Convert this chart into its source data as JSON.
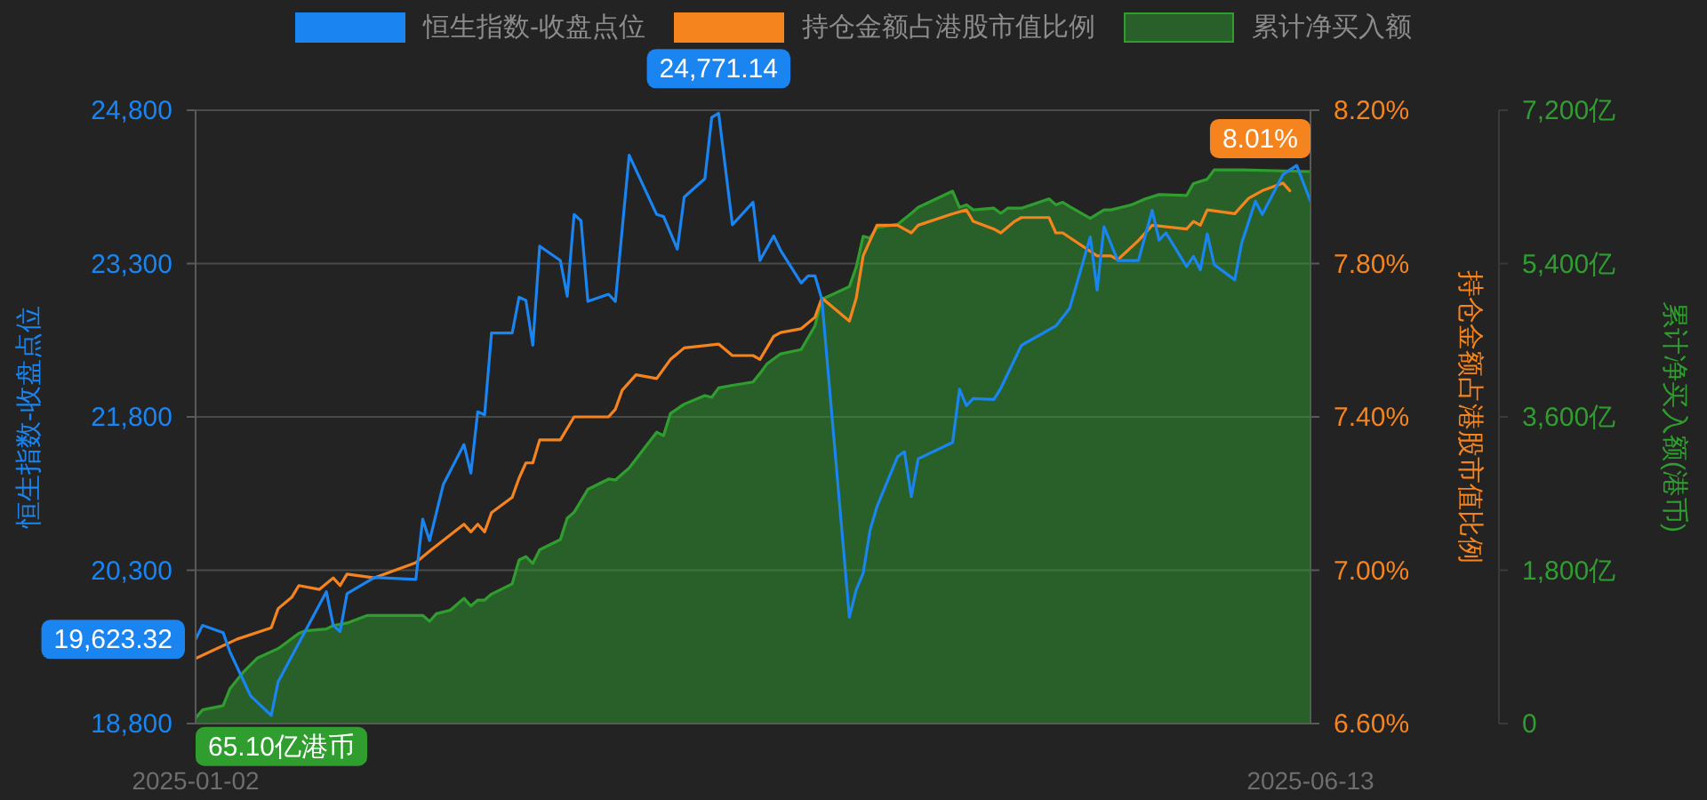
{
  "chart_data": {
    "type": "line",
    "legend": "top",
    "grid": "y",
    "ylabel": "恒生指数-收盘点位",
    "y2label": "持仓金额占港股市值比例",
    "y3label": "累计净买入额(港币)",
    "xlim": [
      "2025-01-02",
      "2025-06-13"
    ],
    "xticks": [
      "2025-01-02",
      "2025-06-13"
    ],
    "ylim": [
      18800,
      24800
    ],
    "yticks": [
      {
        "value": 18800,
        "label": "18,800"
      },
      {
        "value": 20300,
        "label": "20,300"
      },
      {
        "value": 21800,
        "label": "21,800"
      },
      {
        "value": 23300,
        "label": "23,300"
      },
      {
        "value": 24800,
        "label": "24,800"
      }
    ],
    "y2lim": [
      6.6,
      8.2
    ],
    "y2ticks": [
      {
        "value": 6.6,
        "label": "6.60%"
      },
      {
        "value": 7.0,
        "label": "7.00%"
      },
      {
        "value": 7.4,
        "label": "7.40%"
      },
      {
        "value": 7.8,
        "label": "7.80%"
      },
      {
        "value": 8.2,
        "label": "8.20%"
      }
    ],
    "y3lim": [
      0,
      7200
    ],
    "y3ticks": [
      0,
      {
        "value": 1800,
        "label": "1,800亿"
      },
      {
        "value": 3600,
        "label": "3,600亿"
      },
      {
        "value": 5400,
        "label": "5,400亿"
      },
      {
        "value": 7200,
        "label": "7,200亿"
      }
    ],
    "series": [
      {
        "name": "恒生指数-收盘点位",
        "color": "#1a84f0",
        "x": [
          "2025-01-02",
          "2025-01-03",
          "2025-01-06",
          "2025-01-07",
          "2025-01-10",
          "2025-01-13",
          "2025-01-14",
          "2025-01-21",
          "2025-01-22",
          "2025-01-23",
          "2025-01-24",
          "2025-01-28",
          "2025-02-03",
          "2025-02-04",
          "2025-02-05",
          "2025-02-07",
          "2025-02-10",
          "2025-02-11",
          "2025-02-12",
          "2025-02-13",
          "2025-02-14",
          "2025-02-17",
          "2025-02-18",
          "2025-02-19",
          "2025-02-20",
          "2025-02-21",
          "2025-02-24",
          "2025-02-25",
          "2025-02-26",
          "2025-02-27",
          "2025-02-28",
          "2025-03-03",
          "2025-03-04",
          "2025-03-06",
          "2025-03-10",
          "2025-03-11",
          "2025-03-13",
          "2025-03-14",
          "2025-03-17",
          "2025-03-18",
          "2025-03-19",
          "2025-03-21",
          "2025-03-24",
          "2025-03-25",
          "2025-03-27",
          "2025-03-28",
          "2025-03-31",
          "2025-04-01",
          "2025-04-02",
          "2025-04-03",
          "2025-04-07",
          "2025-04-08",
          "2025-04-09",
          "2025-04-10",
          "2025-04-11",
          "2025-04-14",
          "2025-04-15",
          "2025-04-16",
          "2025-04-17",
          "2025-04-22",
          "2025-04-23",
          "2025-04-24",
          "2025-04-25",
          "2025-04-28",
          "2025-04-29",
          "2025-05-02",
          "2025-05-07",
          "2025-05-09",
          "2025-05-12",
          "2025-05-13",
          "2025-05-14",
          "2025-05-16",
          "2025-05-19",
          "2025-05-21",
          "2025-05-22",
          "2025-05-23",
          "2025-05-26",
          "2025-05-27",
          "2025-05-28",
          "2025-05-29",
          "2025-05-30",
          "2025-06-02",
          "2025-06-03",
          "2025-06-05",
          "2025-06-06",
          "2025-06-09",
          "2025-06-11",
          "2025-06-13"
        ],
        "values": [
          19623.32,
          19760,
          19690,
          19500,
          19070,
          18880,
          19210,
          20090,
          19760,
          19700,
          20070,
          20230,
          20210,
          20800,
          20590,
          21140,
          21530,
          21250,
          21850,
          21820,
          22620,
          22620,
          22970,
          22940,
          22500,
          23470,
          23330,
          22980,
          23780,
          23720,
          22930,
          23000,
          22930,
          24360,
          23780,
          23760,
          23440,
          23950,
          24130,
          24730,
          24771.14,
          23680,
          23900,
          23330,
          23570,
          23430,
          23110,
          23180,
          23180,
          22950,
          19840,
          20110,
          20270,
          20690,
          20920,
          21410,
          21460,
          21020,
          21390,
          21550,
          22070,
          21910,
          21980,
          21970,
          22080,
          22500,
          22690,
          22860,
          23560,
          23040,
          23660,
          23330,
          23330,
          23820,
          23530,
          23600,
          23270,
          23370,
          23240,
          23590,
          23290,
          23140,
          23500,
          23910,
          23780,
          24170,
          24260,
          23910
        ],
        "value_labels": [
          "19,623.32",
          null,
          null,
          null,
          null,
          null,
          null,
          null,
          null,
          null,
          null,
          null,
          null,
          null,
          null,
          null,
          null,
          null,
          null,
          null,
          null,
          null,
          null,
          null,
          null,
          null,
          null,
          null,
          null,
          null,
          null,
          null,
          null,
          null,
          null,
          null,
          null,
          null,
          null,
          null,
          "24,771.14",
          null,
          null,
          null,
          null,
          null,
          null,
          null,
          null,
          null,
          null,
          null,
          null,
          null,
          null,
          null,
          null,
          null,
          null,
          null,
          null,
          null,
          null,
          null,
          null,
          null,
          null,
          null,
          null,
          null,
          null,
          null,
          null,
          null,
          null,
          null,
          null,
          null,
          null,
          null,
          null,
          null,
          null,
          null,
          null,
          null,
          null,
          null
        ]
      },
      {
        "name": "持仓金额占港股市值比例",
        "axis": "y2",
        "color": "#f5841f",
        "x": [
          "2025-01-02",
          "2025-01-08",
          "2025-01-13",
          "2025-01-14",
          "2025-01-16",
          "2025-01-17",
          "2025-01-20",
          "2025-01-22",
          "2025-01-23",
          "2025-01-24",
          "2025-01-28",
          "2025-02-03",
          "2025-02-05",
          "2025-02-10",
          "2025-02-11",
          "2025-02-12",
          "2025-02-13",
          "2025-02-14",
          "2025-02-17",
          "2025-02-18",
          "2025-02-19",
          "2025-02-20",
          "2025-02-21",
          "2025-02-24",
          "2025-02-26",
          "2025-03-03",
          "2025-03-04",
          "2025-03-05",
          "2025-03-07",
          "2025-03-10",
          "2025-03-12",
          "2025-03-14",
          "2025-03-19",
          "2025-03-21",
          "2025-03-24",
          "2025-03-25",
          "2025-03-27",
          "2025-03-28",
          "2025-03-31",
          "2025-04-02",
          "2025-04-03",
          "2025-04-07",
          "2025-04-08",
          "2025-04-09",
          "2025-04-11",
          "2025-04-14",
          "2025-04-16",
          "2025-04-17",
          "2025-04-22",
          "2025-04-24",
          "2025-04-25",
          "2025-04-28",
          "2025-04-29",
          "2025-05-01",
          "2025-05-02",
          "2025-05-06",
          "2025-05-07",
          "2025-05-08",
          "2025-05-13",
          "2025-05-15",
          "2025-05-16",
          "2025-05-19",
          "2025-05-21",
          "2025-05-26",
          "2025-05-27",
          "2025-05-28",
          "2025-05-29",
          "2025-06-02",
          "2025-06-04",
          "2025-06-06",
          "2025-06-09",
          "2025-06-10"
        ],
        "values": [
          6.77,
          6.82,
          6.85,
          6.9,
          6.93,
          6.96,
          6.95,
          6.98,
          6.96,
          6.99,
          6.98,
          7.02,
          7.05,
          7.12,
          7.1,
          7.12,
          7.1,
          7.15,
          7.19,
          7.24,
          7.28,
          7.28,
          7.34,
          7.34,
          7.4,
          7.4,
          7.42,
          7.47,
          7.51,
          7.5,
          7.55,
          7.58,
          7.59,
          7.56,
          7.56,
          7.55,
          7.61,
          7.62,
          7.63,
          7.66,
          7.71,
          7.65,
          7.71,
          7.82,
          7.9,
          7.9,
          7.88,
          7.9,
          7.93,
          7.94,
          7.91,
          7.89,
          7.88,
          7.91,
          7.92,
          7.92,
          7.88,
          7.88,
          7.82,
          7.82,
          7.81,
          7.86,
          7.9,
          7.89,
          7.91,
          7.9,
          7.94,
          7.93,
          7.97,
          7.99,
          8.01,
          7.99
        ],
        "value_labels": [
          null,
          null,
          null,
          null,
          null,
          null,
          null,
          null,
          null,
          null,
          null,
          null,
          null,
          null,
          null,
          null,
          null,
          null,
          null,
          null,
          null,
          null,
          null,
          null,
          null,
          null,
          null,
          null,
          null,
          null,
          null,
          null,
          null,
          null,
          null,
          null,
          null,
          null,
          null,
          null,
          null,
          null,
          null,
          null,
          null,
          null,
          null,
          null,
          null,
          null,
          null,
          null,
          null,
          null,
          null,
          null,
          null,
          null,
          null,
          null,
          null,
          null,
          null,
          null,
          null,
          null,
          null,
          null,
          null,
          null,
          "8.01%",
          null
        ]
      },
      {
        "name": "累计净买入额",
        "type": "area",
        "axis": "y3",
        "color": "#2f9e2f",
        "x": [
          "2025-01-02",
          "2025-01-03",
          "2025-01-06",
          "2025-01-07",
          "2025-01-09",
          "2025-01-11",
          "2025-01-14",
          "2025-01-17",
          "2025-01-18",
          "2025-01-21",
          "2025-01-22",
          "2025-01-24",
          "2025-01-27",
          "2025-02-04",
          "2025-02-05",
          "2025-02-06",
          "2025-02-08",
          "2025-02-10",
          "2025-02-11",
          "2025-02-12",
          "2025-02-13",
          "2025-02-14",
          "2025-02-17",
          "2025-02-18",
          "2025-02-19",
          "2025-02-20",
          "2025-02-21",
          "2025-02-24",
          "2025-02-25",
          "2025-02-26",
          "2025-02-28",
          "2025-03-03",
          "2025-03-04",
          "2025-03-06",
          "2025-03-10",
          "2025-03-11",
          "2025-03-12",
          "2025-03-14",
          "2025-03-17",
          "2025-03-18",
          "2025-03-19",
          "2025-03-21",
          "2025-03-24",
          "2025-03-25",
          "2025-03-26",
          "2025-03-28",
          "2025-03-31",
          "2025-04-02",
          "2025-04-03",
          "2025-04-07",
          "2025-04-08",
          "2025-04-09",
          "2025-04-10",
          "2025-04-11",
          "2025-04-14",
          "2025-04-16",
          "2025-04-17",
          "2025-04-22",
          "2025-04-23",
          "2025-04-24",
          "2025-04-25",
          "2025-04-28",
          "2025-04-29",
          "2025-04-30",
          "2025-05-02",
          "2025-05-06",
          "2025-05-07",
          "2025-05-08",
          "2025-05-09",
          "2025-05-12",
          "2025-05-14",
          "2025-05-15",
          "2025-05-18",
          "2025-05-20",
          "2025-05-22",
          "2025-05-26",
          "2025-05-27",
          "2025-05-29",
          "2025-05-30",
          "2025-06-03",
          "2025-06-13"
        ],
        "values": [
          65.1,
          160,
          210,
          410,
          610,
          770,
          880,
          1060,
          1090,
          1110,
          1150,
          1180,
          1270,
          1270,
          1200,
          1290,
          1330,
          1470,
          1380,
          1450,
          1450,
          1520,
          1640,
          1920,
          1960,
          1880,
          2040,
          2160,
          2410,
          2480,
          2750,
          2870,
          2860,
          3000,
          3420,
          3380,
          3640,
          3750,
          3850,
          3830,
          3940,
          3970,
          4010,
          4110,
          4220,
          4340,
          4390,
          4670,
          4980,
          5130,
          5360,
          5720,
          5700,
          5820,
          5860,
          5990,
          6060,
          6250,
          6060,
          6090,
          6030,
          6050,
          5990,
          6050,
          6050,
          6160,
          6090,
          6120,
          6070,
          5930,
          6030,
          6030,
          6090,
          6160,
          6210,
          6200,
          6340,
          6390,
          6500,
          6500,
          6480
        ],
        "value_labels": [
          "65.10亿港币",
          null,
          null,
          null,
          null,
          null,
          null,
          null,
          null,
          null,
          null,
          null,
          null,
          null,
          null,
          null,
          null,
          null,
          null,
          null,
          null,
          null,
          null,
          null,
          null,
          null,
          null,
          null,
          null,
          null,
          null,
          null,
          null,
          null,
          null,
          null,
          null,
          null,
          null,
          null,
          null,
          null,
          null,
          null,
          null,
          null,
          null,
          null,
          null,
          null,
          null,
          null,
          null,
          null,
          null,
          null,
          null,
          null,
          null,
          null,
          null,
          null,
          null,
          null,
          null,
          null,
          null,
          null,
          null,
          null,
          null,
          null,
          null,
          null,
          null,
          null,
          null,
          null,
          null,
          null,
          null
        ]
      }
    ]
  }
}
